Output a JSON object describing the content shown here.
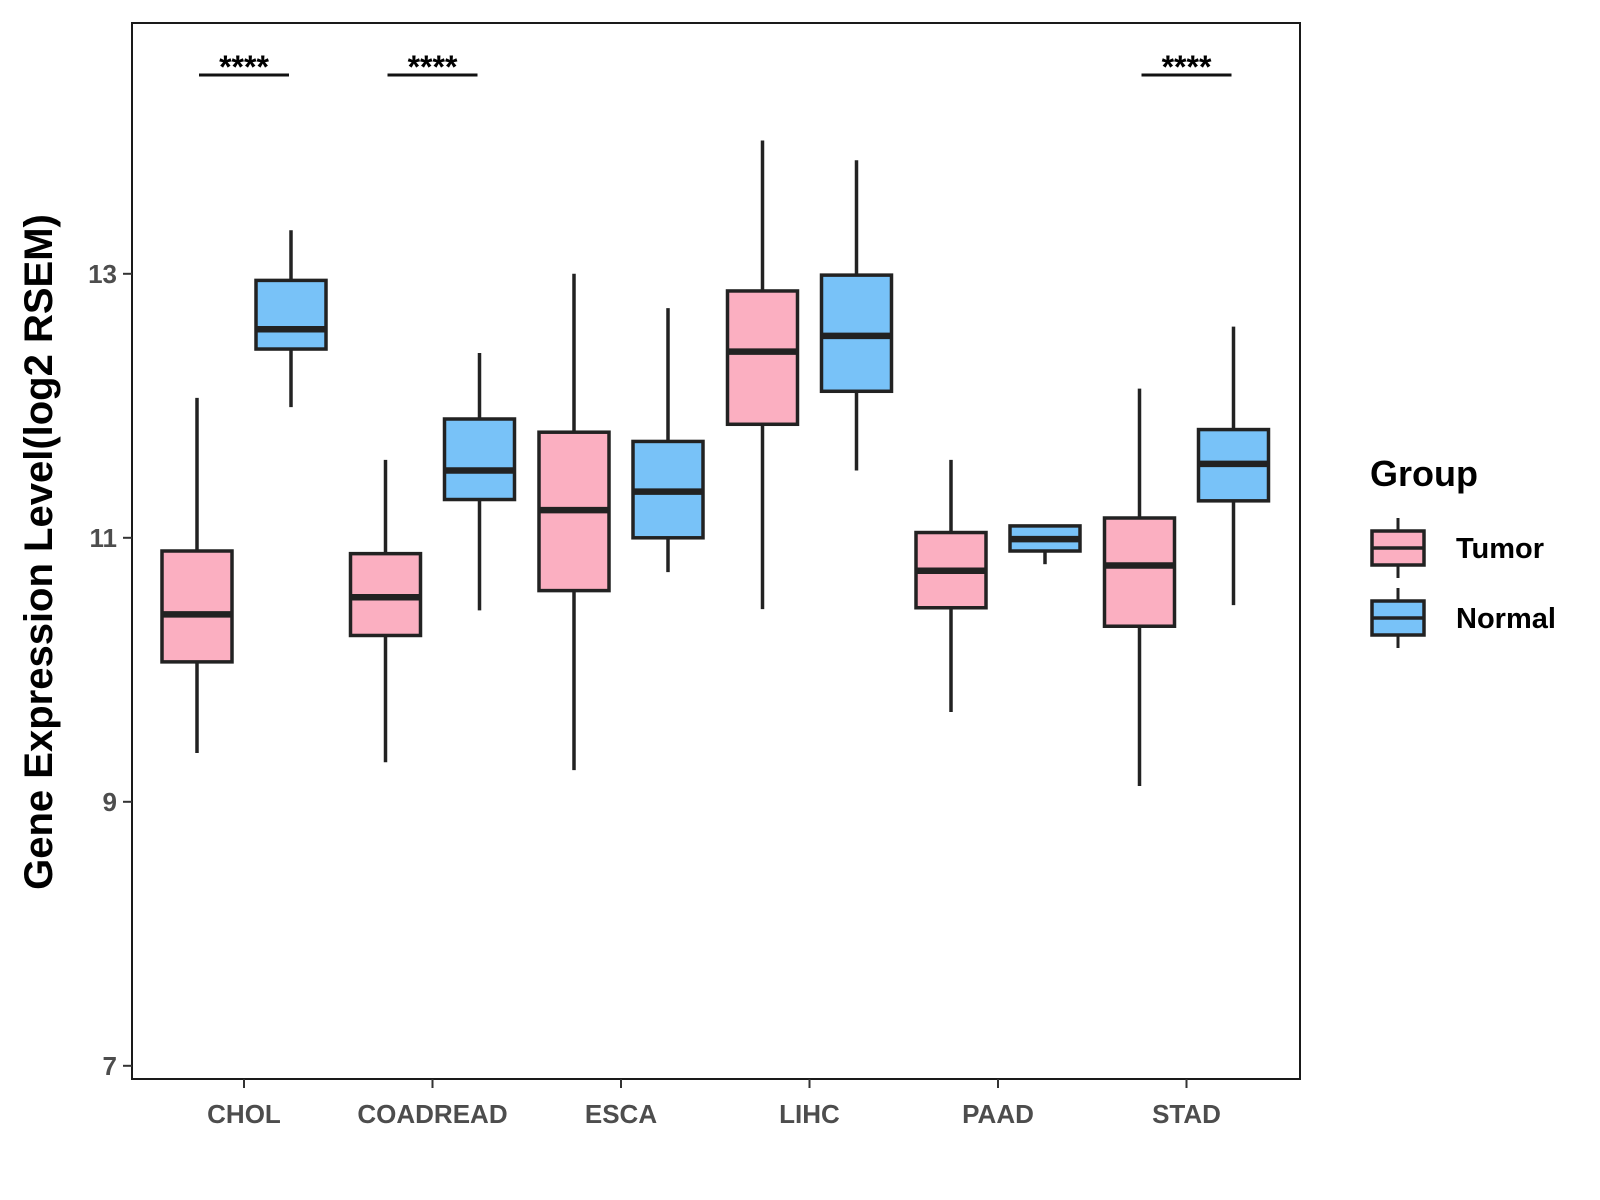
{
  "chart_data": {
    "type": "boxplot",
    "title": "",
    "xlabel": "",
    "ylabel": "Gene Expression Level(log2 RSEM)",
    "ylim": [
      6.9,
      14.9
    ],
    "yticks": [
      7,
      9,
      11,
      13
    ],
    "categories": [
      "CHOL",
      "COADREAD",
      "ESCA",
      "LIHC",
      "PAAD",
      "STAD"
    ],
    "legend": {
      "title": "Group",
      "position": "right"
    },
    "series": [
      {
        "name": "Tumor",
        "color": "#FBAFC1",
        "boxes": [
          {
            "category": "CHOL",
            "whisker_low": 9.37,
            "q1": 10.06,
            "median": 10.42,
            "q3": 10.9,
            "whisker_high": 12.06
          },
          {
            "category": "COADREAD",
            "whisker_low": 9.3,
            "q1": 10.26,
            "median": 10.55,
            "q3": 10.88,
            "whisker_high": 11.59
          },
          {
            "category": "ESCA",
            "whisker_low": 9.24,
            "q1": 10.6,
            "median": 11.21,
            "q3": 11.8,
            "whisker_high": 13.0
          },
          {
            "category": "LIHC",
            "whisker_low": 10.46,
            "q1": 11.86,
            "median": 12.41,
            "q3": 12.87,
            "whisker_high": 14.01
          },
          {
            "category": "PAAD",
            "whisker_low": 9.68,
            "q1": 10.47,
            "median": 10.75,
            "q3": 11.04,
            "whisker_high": 11.59
          },
          {
            "category": "STAD",
            "whisker_low": 9.12,
            "q1": 10.33,
            "median": 10.79,
            "q3": 11.15,
            "whisker_high": 12.13
          }
        ]
      },
      {
        "name": "Normal",
        "color": "#78C2F8",
        "boxes": [
          {
            "category": "CHOL",
            "whisker_low": 11.99,
            "q1": 12.43,
            "median": 12.58,
            "q3": 12.95,
            "whisker_high": 13.33
          },
          {
            "category": "COADREAD",
            "whisker_low": 10.45,
            "q1": 11.29,
            "median": 11.51,
            "q3": 11.9,
            "whisker_high": 12.4
          },
          {
            "category": "ESCA",
            "whisker_low": 10.74,
            "q1": 11.0,
            "median": 11.35,
            "q3": 11.73,
            "whisker_high": 12.74
          },
          {
            "category": "LIHC",
            "whisker_low": 11.51,
            "q1": 12.11,
            "median": 12.53,
            "q3": 12.99,
            "whisker_high": 13.86
          },
          {
            "category": "PAAD",
            "whisker_low": 10.8,
            "q1": 10.9,
            "median": 10.99,
            "q3": 11.09,
            "whisker_high": 11.1
          },
          {
            "category": "STAD",
            "whisker_low": 10.49,
            "q1": 11.28,
            "median": 11.56,
            "q3": 11.82,
            "whisker_high": 12.6
          }
        ]
      }
    ],
    "annotations": [
      {
        "category": "CHOL",
        "text": "****"
      },
      {
        "category": "COADREAD",
        "text": "****"
      },
      {
        "category": "STAD",
        "text": "****"
      }
    ]
  }
}
